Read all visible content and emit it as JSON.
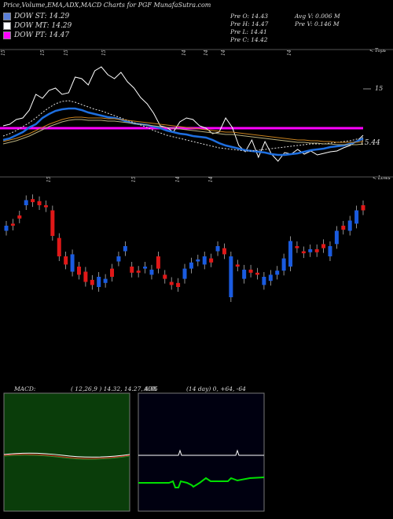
{
  "header": {
    "title": "Price,Volume,EMA,ADX,MACD Charts for PGF MunafaSutra.com"
  },
  "legend": [
    {
      "label": "DOW ST: 14.29",
      "color": "#5a7fd8"
    },
    {
      "label": "DOW MT: 14.29",
      "color": "#ffffff"
    },
    {
      "label": "DOW PT: 14.47",
      "color": "#ff00ff"
    }
  ],
  "ohlc": {
    "open": "Pre O: 14.43",
    "high": "Pre H: 14.47",
    "low": "Pre L: 14.41",
    "close": "Pre C: 14.42",
    "avg_volume": "Avg V: 0.006 M",
    "volume": "Pre V: 0.146 M"
  },
  "top_panel": {
    "corner_label": "< Tops",
    "price_tick": "15",
    "last_value": "15.44",
    "date_labels": [
      "15",
      "15",
      "15",
      "15",
      "14",
      "14",
      "14",
      "14"
    ]
  },
  "bottom_panel": {
    "corner_label": "< Lows",
    "date_labels": [
      "15",
      "15",
      "14",
      "14"
    ]
  },
  "macd": {
    "title": "MACD:",
    "params": "( 12,26,9 ) 14.32, 14.27, 0.05"
  },
  "adx": {
    "title": "ADX",
    "params": "(14  day) 0, +64, -64"
  },
  "chart_data": [
    {
      "type": "line",
      "title": "Price,Volume,EMA,ADX,MACD Charts for PGF",
      "series": [
        {
          "name": "DOW ST",
          "value": 14.29
        },
        {
          "name": "DOW MT",
          "value": 14.29
        },
        {
          "name": "DOW PT",
          "value": 14.47
        }
      ],
      "last_value": 15.44,
      "grid": false
    },
    {
      "type": "candlestick",
      "candles_top_to_bottom_relative": [
        {
          "o": 0.35,
          "c": 0.3,
          "up": true
        },
        {
          "o": 0.28,
          "c": 0.3,
          "up": false
        },
        {
          "o": 0.2,
          "c": 0.23,
          "up": false
        },
        {
          "o": 0.1,
          "c": 0.05,
          "up": true
        },
        {
          "o": 0.04,
          "c": 0.07,
          "up": false
        },
        {
          "o": 0.06,
          "c": 0.1,
          "up": false
        },
        {
          "o": 0.1,
          "c": 0.12,
          "up": false
        },
        {
          "o": 0.15,
          "c": 0.4,
          "up": false
        },
        {
          "o": 0.42,
          "c": 0.6,
          "up": false
        },
        {
          "o": 0.6,
          "c": 0.68,
          "up": false
        },
        {
          "o": 0.58,
          "c": 0.75,
          "up": true
        },
        {
          "o": 0.7,
          "c": 0.78,
          "up": false
        },
        {
          "o": 0.75,
          "c": 0.85,
          "up": false
        },
        {
          "o": 0.83,
          "c": 0.88,
          "up": false
        },
        {
          "o": 0.8,
          "c": 0.9,
          "up": true
        },
        {
          "o": 0.82,
          "c": 0.86,
          "up": true
        },
        {
          "o": 0.72,
          "c": 0.8,
          "up": false
        },
        {
          "o": 0.6,
          "c": 0.65,
          "up": true
        },
        {
          "o": 0.5,
          "c": 0.55,
          "up": true
        },
        {
          "o": 0.7,
          "c": 0.76,
          "up": false
        },
        {
          "o": 0.76,
          "c": 0.74,
          "up": false
        },
        {
          "o": 0.72,
          "c": 0.7,
          "up": true
        },
        {
          "o": 0.73,
          "c": 0.78,
          "up": true
        },
        {
          "o": 0.6,
          "c": 0.72,
          "up": false
        },
        {
          "o": 0.78,
          "c": 0.82,
          "up": false
        },
        {
          "o": 0.85,
          "c": 0.88,
          "up": false
        },
        {
          "o": 0.86,
          "c": 0.9,
          "up": false
        },
        {
          "o": 0.72,
          "c": 0.82,
          "up": true
        },
        {
          "o": 0.66,
          "c": 0.72,
          "up": true
        },
        {
          "o": 0.63,
          "c": 0.65,
          "up": true
        },
        {
          "o": 0.6,
          "c": 0.68,
          "up": true
        },
        {
          "o": 0.62,
          "c": 0.66,
          "up": false
        },
        {
          "o": 0.5,
          "c": 0.55,
          "up": true
        },
        {
          "o": 0.52,
          "c": 0.58,
          "up": false
        },
        {
          "o": 0.6,
          "c": 1.0,
          "up": true
        },
        {
          "o": 0.68,
          "c": 0.7,
          "up": false
        },
        {
          "o": 0.73,
          "c": 0.82,
          "up": true
        },
        {
          "o": 0.73,
          "c": 0.76,
          "up": false
        },
        {
          "o": 0.76,
          "c": 0.78,
          "up": false
        },
        {
          "o": 0.8,
          "c": 0.88,
          "up": true
        },
        {
          "o": 0.78,
          "c": 0.84,
          "up": true
        },
        {
          "o": 0.74,
          "c": 0.78,
          "up": true
        },
        {
          "o": 0.62,
          "c": 0.74,
          "up": true
        },
        {
          "o": 0.45,
          "c": 0.7,
          "up": true
        },
        {
          "o": 0.5,
          "c": 0.52,
          "up": false
        },
        {
          "o": 0.55,
          "c": 0.57,
          "up": false
        },
        {
          "o": 0.53,
          "c": 0.56,
          "up": true
        },
        {
          "o": 0.53,
          "c": 0.56,
          "up": false
        },
        {
          "o": 0.48,
          "c": 0.52,
          "up": false
        },
        {
          "o": 0.5,
          "c": 0.6,
          "up": true
        },
        {
          "o": 0.35,
          "c": 0.48,
          "up": true
        },
        {
          "o": 0.3,
          "c": 0.34,
          "up": false
        },
        {
          "o": 0.25,
          "c": 0.35,
          "up": true
        },
        {
          "o": 0.15,
          "c": 0.28,
          "up": true
        },
        {
          "o": 0.1,
          "c": 0.15,
          "up": false
        }
      ]
    }
  ],
  "colors": {
    "up": "#1a5be0",
    "down": "#e01818",
    "pt_line": "#ff00ff",
    "ema_blue": "#1e6fe0",
    "ema_white": "#ffffff",
    "ema_orange": "#c8821e",
    "macd_bg": "#0a3d0a",
    "adx_bg": "#000010",
    "adx_green": "#00e000"
  }
}
